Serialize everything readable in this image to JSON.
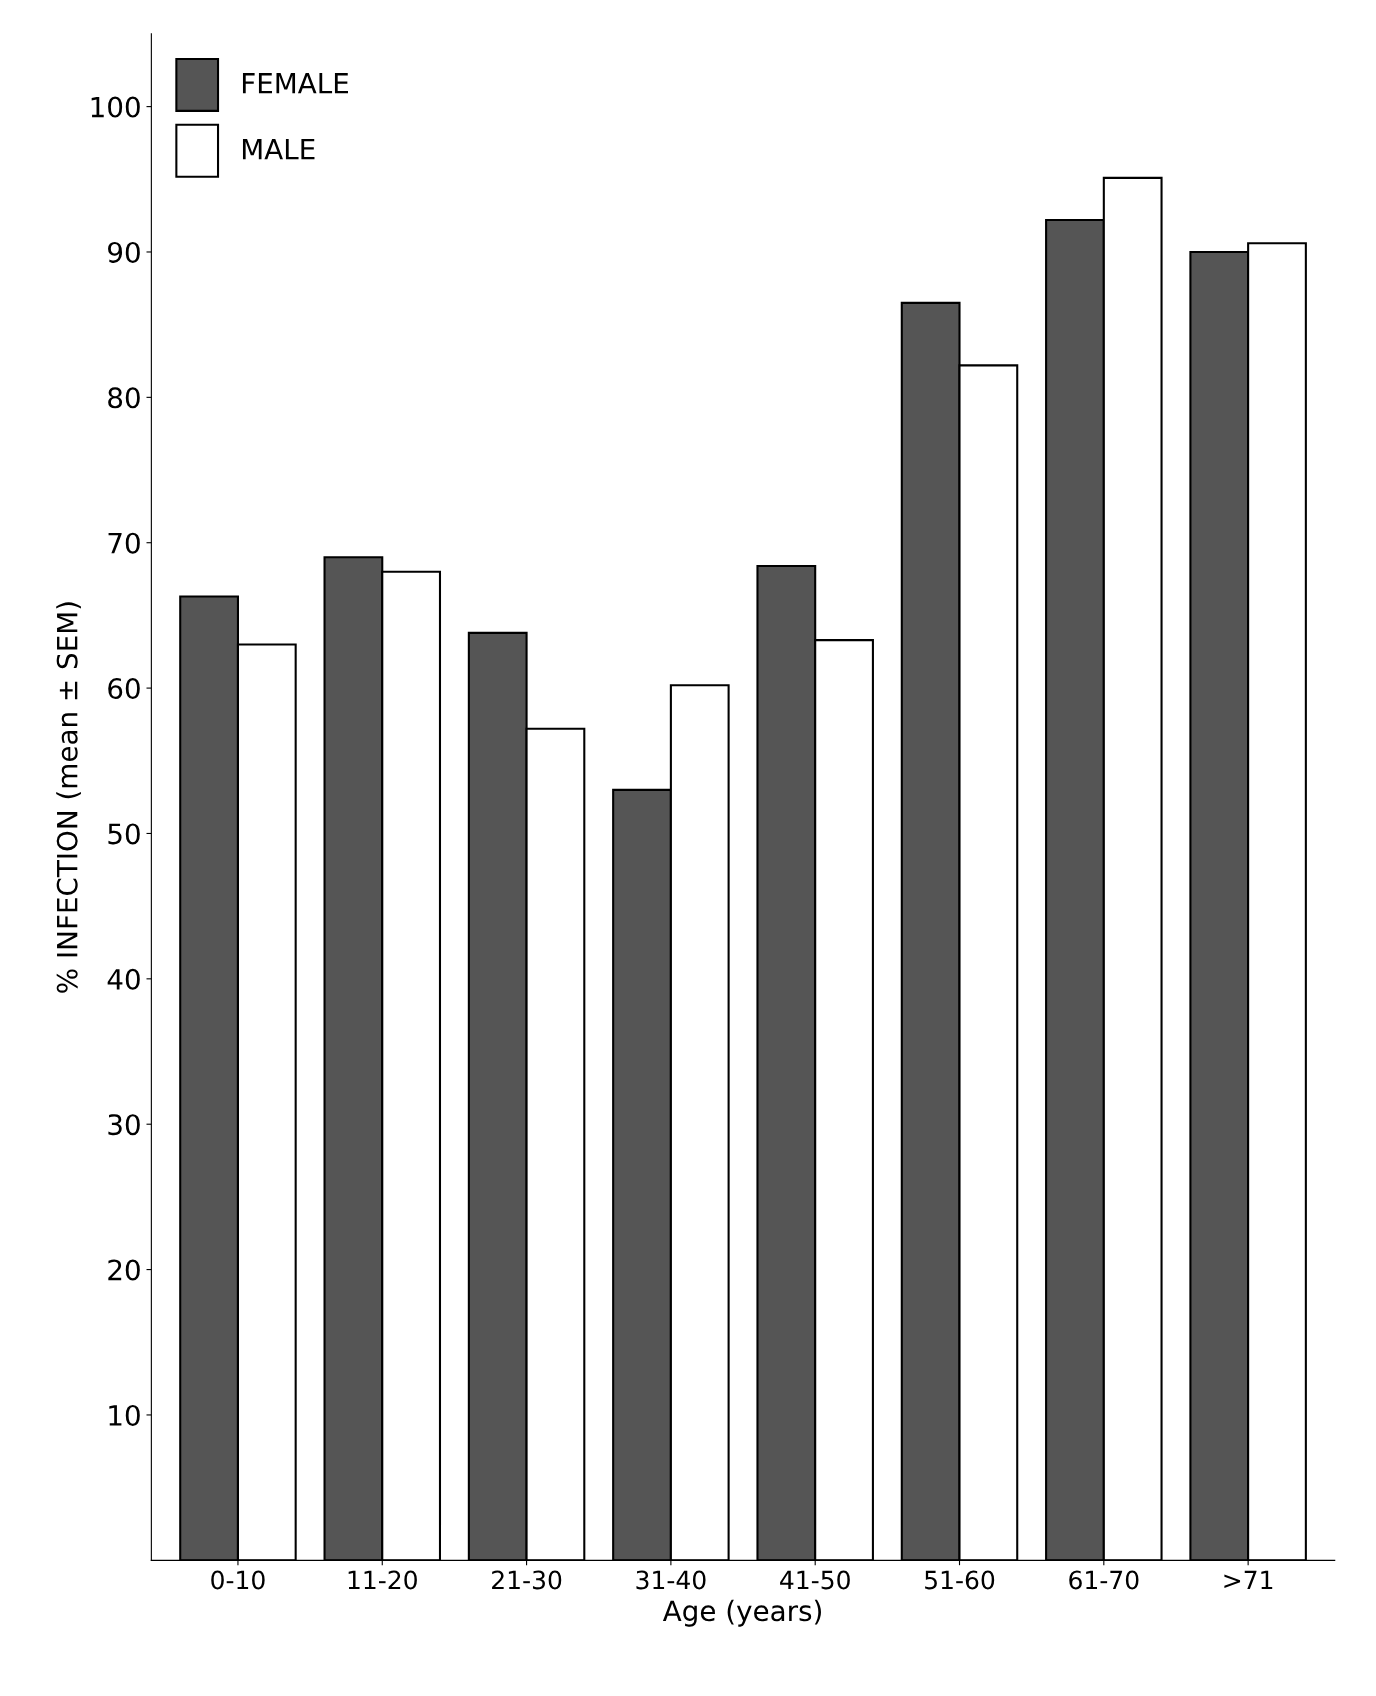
{
  "chart_data": {
    "type": "bar",
    "xlabel": "Age (years)",
    "ylabel": "% INFECTION (mean ± SEM)",
    "categories": [
      "0-10",
      "11-20",
      "21-30",
      "31-40",
      "41-50",
      "51-60",
      "61-70",
      ">71"
    ],
    "series": [
      {
        "name": "FEMALE",
        "color": "#555555",
        "values": [
          66.3,
          69.0,
          63.8,
          53.0,
          68.4,
          86.5,
          92.2,
          90.0
        ]
      },
      {
        "name": "MALE",
        "color": "#ffffff",
        "values": [
          63.0,
          68.0,
          57.2,
          60.2,
          63.3,
          82.2,
          95.1,
          90.6
        ]
      }
    ],
    "ylim": [
      0,
      105
    ],
    "yticks": [
      10,
      20,
      30,
      40,
      50,
      60,
      70,
      80,
      90,
      100
    ],
    "grid": false,
    "legend": "top left"
  }
}
